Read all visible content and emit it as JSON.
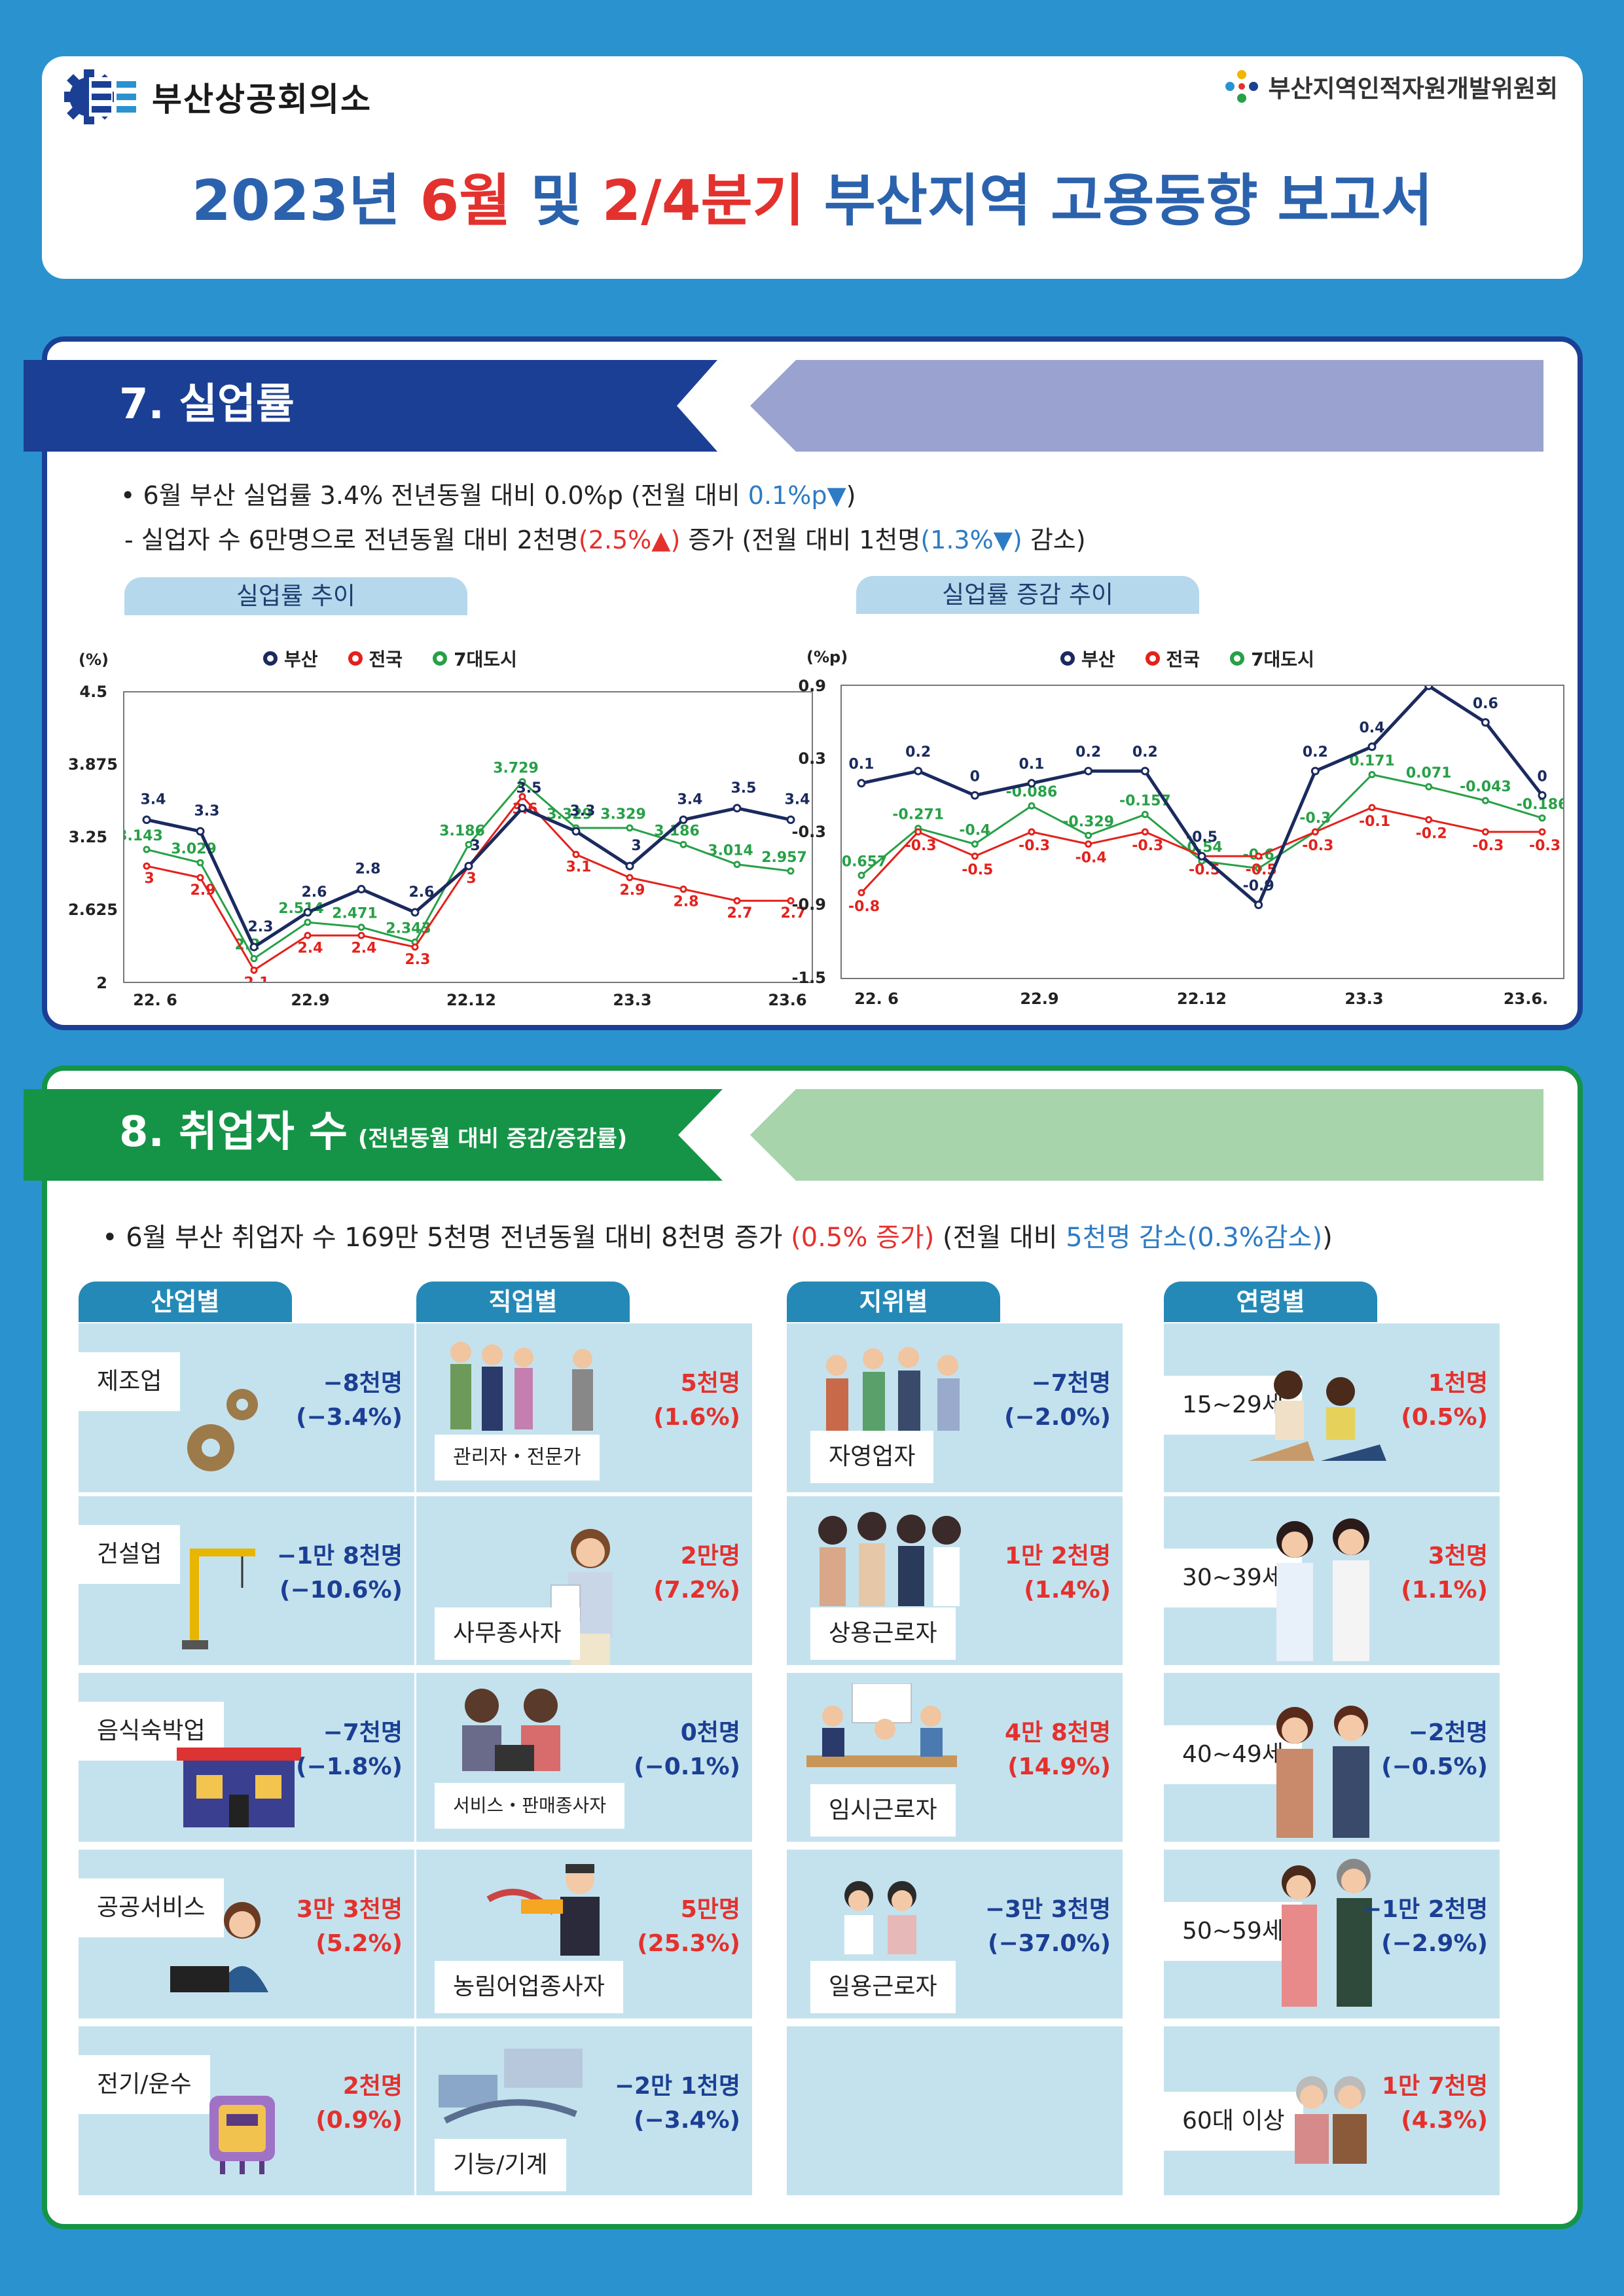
{
  "header": {
    "org_left": "부산상공회의소",
    "org_right": "부산지역인적자원개발위원회",
    "title_part1": "2023년 ",
    "title_part2": "6월",
    "title_part3": " 및 ",
    "title_part4": "2/4분기",
    "title_part5": " 부산지역 고용동향 보고서"
  },
  "section7": {
    "heading": "7. 실업률",
    "bullet1_a": "• 6월 부산 실업률 3.4% 전년동월 대비 0.0%p (전월 대비 ",
    "bullet1_b": "0.1%p▼",
    "bullet1_c": ")",
    "bullet2_a": "- 실업자 수 6만명으로 전년동월 대비 2천명",
    "bullet2_b": "(2.5%▲)",
    "bullet2_c": " 증가 (전월 대비 1천명",
    "bullet2_d": "(1.3%▼)",
    "bullet2_e": " 감소)",
    "chart1_title": "실업률 추이",
    "chart2_title": "실업률 증감 추이"
  },
  "chart_data": [
    {
      "type": "line",
      "title": "실업률 추이",
      "ylabel": "(%)",
      "ylim": [
        2,
        4.5
      ],
      "yticks": [
        "4.5",
        "3.875",
        "3.25",
        "2.625",
        "2"
      ],
      "x": [
        "22. 6",
        "22. 7",
        "22. 8",
        "22.9",
        "22.10",
        "22.11",
        "22.12",
        "23.1",
        "23.2",
        "23.3",
        "23.4",
        "23.5",
        "23.6"
      ],
      "xticks": [
        "22. 6",
        "22.9",
        "22.12",
        "23.3",
        "23.6"
      ],
      "series": [
        {
          "name": "부산",
          "color": "#1b2a5e",
          "values": [
            3.4,
            3.3,
            2.3,
            2.6,
            2.8,
            2.6,
            3.0,
            3.5,
            3.3,
            3.0,
            3.4,
            3.5,
            3.4
          ],
          "labels": [
            "3.4",
            "3.3",
            "2.3",
            "2.6",
            "2.8",
            "2.6",
            "3",
            "3.5",
            "3.3",
            "3",
            "3.4",
            "3.5",
            "3.4"
          ]
        },
        {
          "name": "전국",
          "color": "#e3211c",
          "values": [
            3.0,
            2.9,
            2.1,
            2.4,
            2.4,
            2.3,
            3.0,
            3.6,
            3.1,
            2.9,
            2.8,
            2.7,
            2.7
          ],
          "labels": [
            "3",
            "2.9",
            "2.1",
            "2.4",
            "2.4",
            "2.3",
            "3",
            "3.6",
            "3.1",
            "2.9",
            "2.8",
            "2.7",
            "2.7"
          ]
        },
        {
          "name": "7대도시",
          "color": "#27a047",
          "values": [
            3.143,
            3.029,
            2.2,
            2.514,
            2.471,
            2.343,
            3.186,
            3.729,
            3.329,
            3.329,
            3.186,
            3.014,
            2.957
          ],
          "labels": [
            "3.143",
            "3.029",
            "2.2",
            "2.514",
            "2.471",
            "2.343",
            "3.186",
            "3.729",
            "3.329",
            "3.329",
            "3.186",
            "3.014",
            "2.957"
          ]
        }
      ]
    },
    {
      "type": "line",
      "title": "실업률 증감 추이",
      "ylabel": "(%p)",
      "ylim": [
        -1.5,
        0.9
      ],
      "yticks": [
        "0.9",
        "0.3",
        "-0.3",
        "-0.9",
        "-1.5"
      ],
      "x": [
        "22. 6",
        "22. 7",
        "22. 8",
        "22.9",
        "22.10",
        "22.11",
        "22.12",
        "23.1",
        "23.2",
        "23.3",
        "23.4",
        "23.5",
        "23.6."
      ],
      "xticks": [
        "22. 6",
        "22.9",
        "22.12",
        "23.3",
        "23.6."
      ],
      "series": [
        {
          "name": "부산",
          "color": "#1b2a5e",
          "values": [
            0.1,
            0.2,
            0.0,
            0.1,
            0.2,
            0.2,
            -0.5,
            -0.9,
            0.2,
            0.4,
            0.9,
            0.6,
            0.0
          ],
          "labels": [
            "0.1",
            "0.2",
            "0",
            "0.1",
            "0.2",
            "0.2",
            "-0.5",
            "-0.9",
            "0.2",
            "0.4",
            "0.9",
            "0.6",
            "0"
          ]
        },
        {
          "name": "전국",
          "color": "#e3211c",
          "values": [
            -0.8,
            -0.3,
            -0.5,
            -0.3,
            -0.4,
            -0.3,
            -0.5,
            -0.5,
            -0.3,
            -0.1,
            -0.2,
            -0.3,
            -0.3
          ],
          "labels": [
            "-0.8",
            "-0.3",
            "-0.5",
            "-0.3",
            "-0.4",
            "-0.3",
            "-0.5",
            "-0.5",
            "-0.3",
            "-0.1",
            "-0.2",
            "-0.3",
            "-0.3"
          ]
        },
        {
          "name": "7대도시",
          "color": "#27a047",
          "values": [
            -0.657,
            -0.271,
            -0.4,
            -0.086,
            -0.329,
            -0.157,
            -0.54,
            -0.6,
            -0.3,
            0.171,
            0.071,
            -0.043,
            -0.186
          ],
          "labels": [
            "-0.657",
            "-0.271",
            "-0.4",
            "-0.086",
            "-0.329",
            "-0.157",
            "-0.54",
            "-0.6",
            "-0.3",
            "0.171",
            "0.071",
            "-0.043",
            "-0.186"
          ]
        }
      ]
    }
  ],
  "section8": {
    "heading": "8. 취업자 수",
    "heading_sub": "(전년동월 대비 증감/증감률)",
    "bullet_a": "• 6월 부산 취업자 수 169만 5천명 전년동월 대비 8천명 증가 ",
    "bullet_b": "(0.5% 증가)",
    "bullet_c": " (전월 대비  ",
    "bullet_d": "5천명 감소(0.3%감소)",
    "bullet_e": ")",
    "categories": [
      "산업별",
      "직업별",
      "지위별",
      "연령별"
    ],
    "industry": [
      {
        "label": "제조업",
        "value": "−8천명\n(−3.4%)",
        "sign": "neg"
      },
      {
        "label": "건설업",
        "value": "−1만 8천명\n(−10.6%)",
        "sign": "neg"
      },
      {
        "label": "음식숙박업",
        "value": "−7천명\n(−1.8%)",
        "sign": "neg"
      },
      {
        "label": "공공서비스",
        "value": "3만 3천명\n(5.2%)",
        "sign": "pos"
      },
      {
        "label": "전기/운수",
        "value": "2천명\n(0.9%)",
        "sign": "pos"
      }
    ],
    "occupation": [
      {
        "label": "관리자・전문가",
        "value": "5천명\n(1.6%)",
        "sign": "pos"
      },
      {
        "label": "사무종사자",
        "value": "2만명\n(7.2%)",
        "sign": "pos"
      },
      {
        "label": "서비스・판매종사자",
        "value": "0천명\n(−0.1%)",
        "sign": "neg"
      },
      {
        "label": "농림어업종사자",
        "value": "5만명\n(25.3%)",
        "sign": "pos"
      },
      {
        "label": "기능/기계",
        "value": "−2만 1천명\n(−3.4%)",
        "sign": "neg"
      }
    ],
    "status": [
      {
        "label": "자영업자",
        "value": "−7천명\n(−2.0%)",
        "sign": "neg"
      },
      {
        "label": "상용근로자",
        "value": "1만 2천명\n(1.4%)",
        "sign": "pos"
      },
      {
        "label": "임시근로자",
        "value": "4만 8천명\n(14.9%)",
        "sign": "pos"
      },
      {
        "label": "일용근로자",
        "value": "−3만 3천명\n(−37.0%)",
        "sign": "neg"
      }
    ],
    "age": [
      {
        "label": "15~29세",
        "value": "1천명\n(0.5%)",
        "sign": "pos"
      },
      {
        "label": "30~39세",
        "value": "3천명\n(1.1%)",
        "sign": "pos"
      },
      {
        "label": "40~49세",
        "value": "−2천명\n(−0.5%)",
        "sign": "neg"
      },
      {
        "label": "50~59세",
        "value": "−1만 2천명\n(−2.9%)",
        "sign": "neg"
      },
      {
        "label": "60대 이상",
        "value": "1만 7천명\n(4.3%)",
        "sign": "pos"
      }
    ]
  }
}
